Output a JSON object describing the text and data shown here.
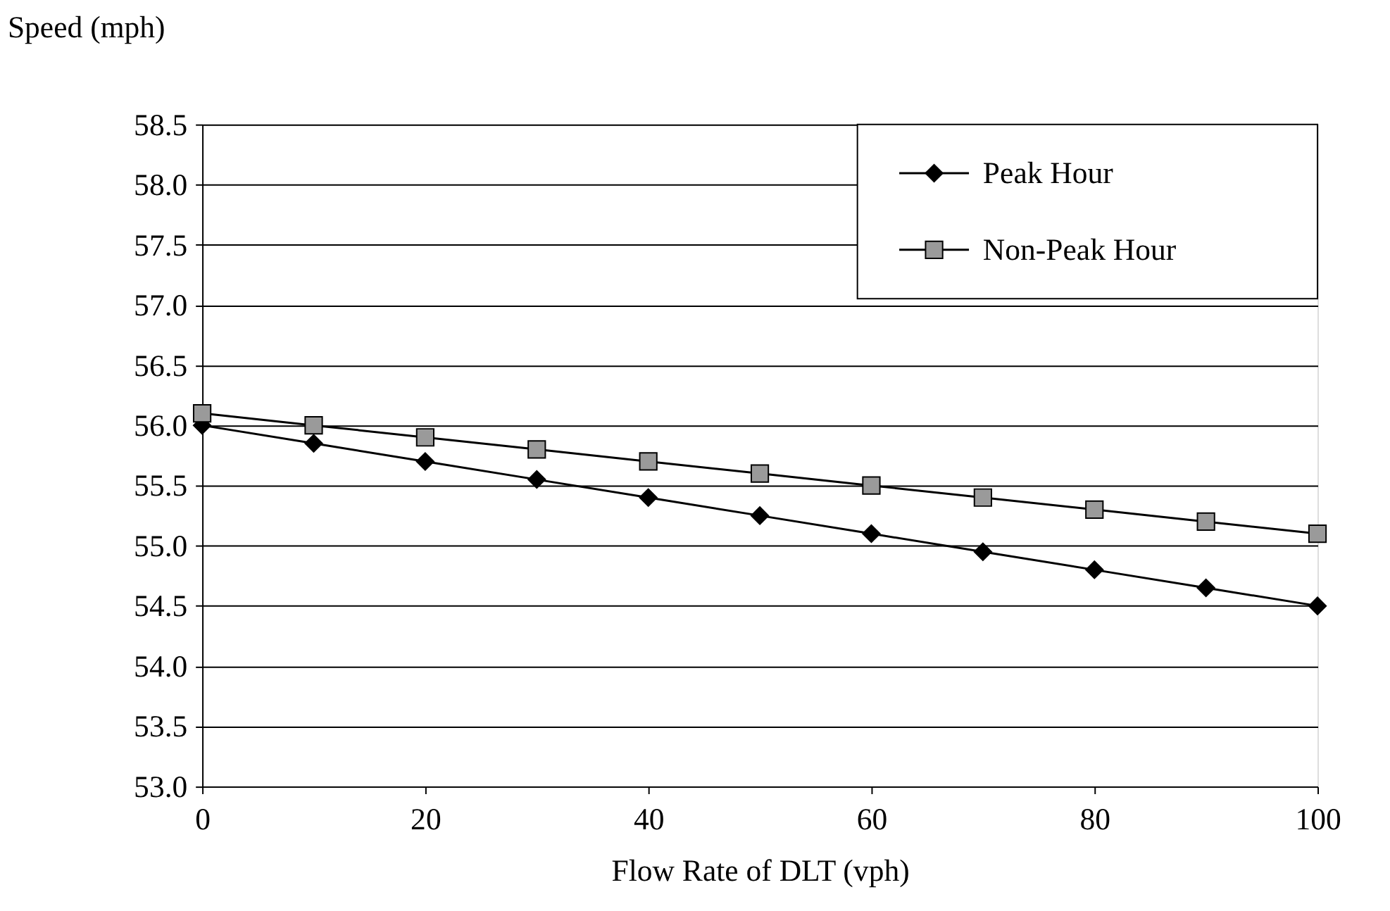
{
  "chart_data": {
    "type": "line",
    "xlabel": "Flow Rate of DLT (vph)",
    "ylabel": "Speed (mph)",
    "x": [
      0,
      10,
      20,
      30,
      40,
      50,
      60,
      70,
      80,
      90,
      100
    ],
    "series": [
      {
        "name": "Peak Hour",
        "color": "#000000",
        "marker": "diamond",
        "values": [
          56.0,
          55.85,
          55.7,
          55.55,
          55.4,
          55.25,
          55.1,
          54.95,
          54.8,
          54.65,
          54.5
        ]
      },
      {
        "name": "Non-Peak Hour",
        "color": "#000000",
        "marker": "square",
        "values": [
          56.1,
          56.0,
          55.9,
          55.8,
          55.7,
          55.6,
          55.5,
          55.4,
          55.3,
          55.2,
          55.1
        ]
      }
    ],
    "xlim": [
      0,
      100
    ],
    "xticks": [
      0,
      20,
      40,
      60,
      80,
      100
    ],
    "ylim": [
      53.0,
      58.5
    ],
    "yticks": [
      {
        "value": 53,
        "label": "53.0"
      },
      {
        "value": 53.5,
        "label": "53.5"
      },
      {
        "value": 54,
        "label": "54.0"
      },
      {
        "value": 54.5,
        "label": "54.5"
      },
      {
        "value": 55,
        "label": "55.0"
      },
      {
        "value": 55.5,
        "label": "55.5"
      },
      {
        "value": 56,
        "label": "56.0"
      },
      {
        "value": 56.5,
        "label": "56.5"
      },
      {
        "value": 57,
        "label": "57.0"
      },
      {
        "value": 57.5,
        "label": "57.5"
      },
      {
        "value": 58,
        "label": "58.0"
      },
      {
        "value": 58.5,
        "label": "58.5"
      }
    ],
    "grid": "y",
    "legend": "top right",
    "line_style": "solid"
  }
}
